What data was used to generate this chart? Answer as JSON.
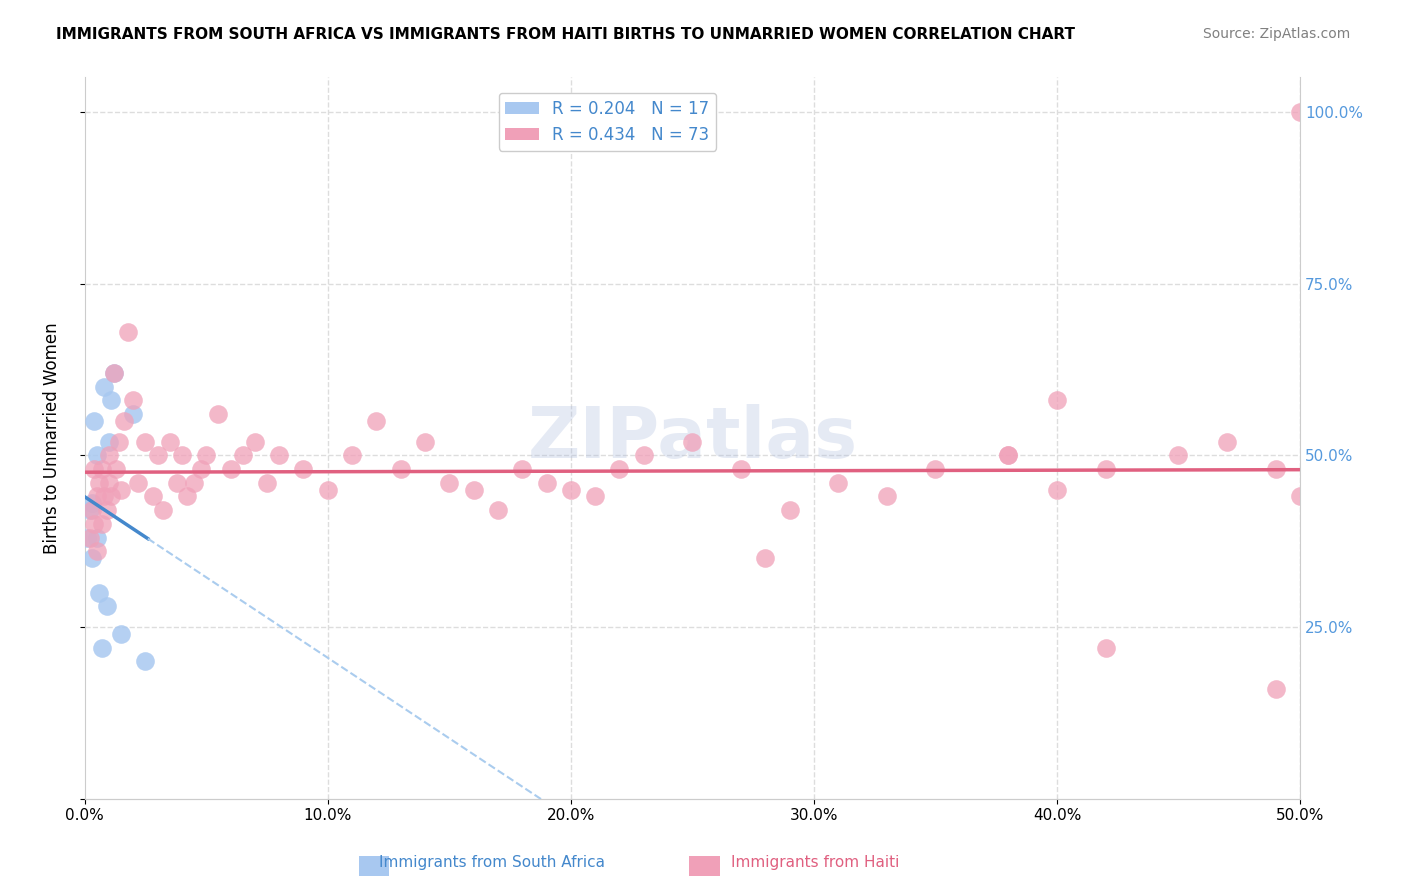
{
  "title": "IMMIGRANTS FROM SOUTH AFRICA VS IMMIGRANTS FROM HAITI BIRTHS TO UNMARRIED WOMEN CORRELATION CHART",
  "source": "Source: ZipAtlas.com",
  "ylabel": "Births to Unmarried Women",
  "xlim": [
    0.0,
    0.5
  ],
  "ylim": [
    0.0,
    1.05
  ],
  "legend_r1": "R = 0.204",
  "legend_n1": "N = 17",
  "legend_r2": "R = 0.434",
  "legend_n2": "N = 73",
  "color_sa": "#a8c8f0",
  "color_haiti": "#f0a0b8",
  "line_color_sa": "#4488cc",
  "line_color_haiti": "#e06080",
  "dashed_line_color": "#aaccee",
  "watermark": "ZIPatlas",
  "south_africa_x": [
    0.001,
    0.002,
    0.003,
    0.003,
    0.004,
    0.005,
    0.005,
    0.006,
    0.007,
    0.008,
    0.009,
    0.01,
    0.011,
    0.012,
    0.015,
    0.02,
    0.025
  ],
  "south_africa_y": [
    0.38,
    0.42,
    0.35,
    0.43,
    0.55,
    0.38,
    0.5,
    0.3,
    0.22,
    0.6,
    0.28,
    0.52,
    0.58,
    0.62,
    0.24,
    0.56,
    0.2
  ],
  "haiti_x": [
    0.002,
    0.003,
    0.004,
    0.004,
    0.005,
    0.005,
    0.006,
    0.007,
    0.007,
    0.008,
    0.009,
    0.01,
    0.01,
    0.011,
    0.012,
    0.013,
    0.014,
    0.015,
    0.016,
    0.018,
    0.02,
    0.022,
    0.025,
    0.028,
    0.03,
    0.032,
    0.035,
    0.038,
    0.04,
    0.042,
    0.045,
    0.048,
    0.05,
    0.055,
    0.06,
    0.065,
    0.07,
    0.075,
    0.08,
    0.09,
    0.1,
    0.11,
    0.12,
    0.13,
    0.14,
    0.15,
    0.16,
    0.17,
    0.18,
    0.19,
    0.2,
    0.21,
    0.22,
    0.23,
    0.25,
    0.27,
    0.29,
    0.31,
    0.33,
    0.35,
    0.38,
    0.4,
    0.42,
    0.45,
    0.47,
    0.49,
    0.5,
    0.49,
    0.38,
    0.4,
    0.42,
    0.28,
    0.5
  ],
  "haiti_y": [
    0.38,
    0.42,
    0.4,
    0.48,
    0.36,
    0.44,
    0.46,
    0.4,
    0.48,
    0.44,
    0.42,
    0.46,
    0.5,
    0.44,
    0.62,
    0.48,
    0.52,
    0.45,
    0.55,
    0.68,
    0.58,
    0.46,
    0.52,
    0.44,
    0.5,
    0.42,
    0.52,
    0.46,
    0.5,
    0.44,
    0.46,
    0.48,
    0.5,
    0.56,
    0.48,
    0.5,
    0.52,
    0.46,
    0.5,
    0.48,
    0.45,
    0.5,
    0.55,
    0.48,
    0.52,
    0.46,
    0.45,
    0.42,
    0.48,
    0.46,
    0.45,
    0.44,
    0.48,
    0.5,
    0.52,
    0.48,
    0.42,
    0.46,
    0.44,
    0.48,
    0.5,
    0.45,
    0.48,
    0.5,
    0.52,
    0.48,
    0.44,
    0.16,
    0.5,
    0.58,
    0.22,
    0.35,
    1.0
  ]
}
